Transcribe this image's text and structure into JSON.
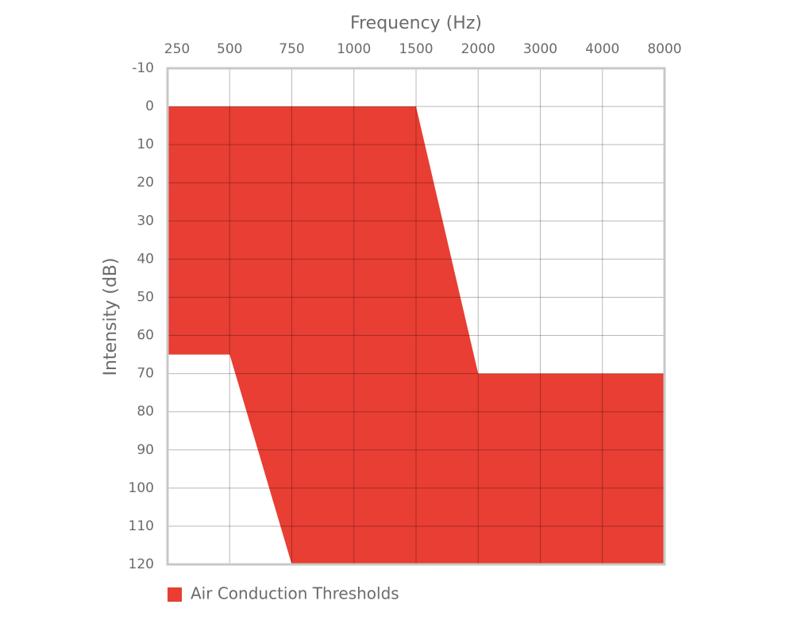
{
  "chart_data": {
    "type": "range-area",
    "title": "Frequency (Hz)",
    "y_label": "Intensity (dB)",
    "categories": [
      "250",
      "500",
      "750",
      "1000",
      "1500",
      "2000",
      "3000",
      "4000",
      "8000"
    ],
    "series": [
      {
        "name": "Air Conduction Thresholds",
        "color": "#e83e33",
        "values": [
          0,
          0,
          0,
          0,
          0,
          70,
          70,
          70,
          70
        ],
        "lower": [
          65,
          65,
          120,
          120,
          120,
          120,
          120,
          120,
          120
        ]
      }
    ],
    "ylim": [
      -10,
      120
    ],
    "y_reversed": true,
    "yticks": [
      -10,
      0,
      10,
      20,
      30,
      40,
      50,
      60,
      70,
      80,
      90,
      100,
      110,
      120
    ],
    "grid": true,
    "legend": "bottom-left"
  }
}
